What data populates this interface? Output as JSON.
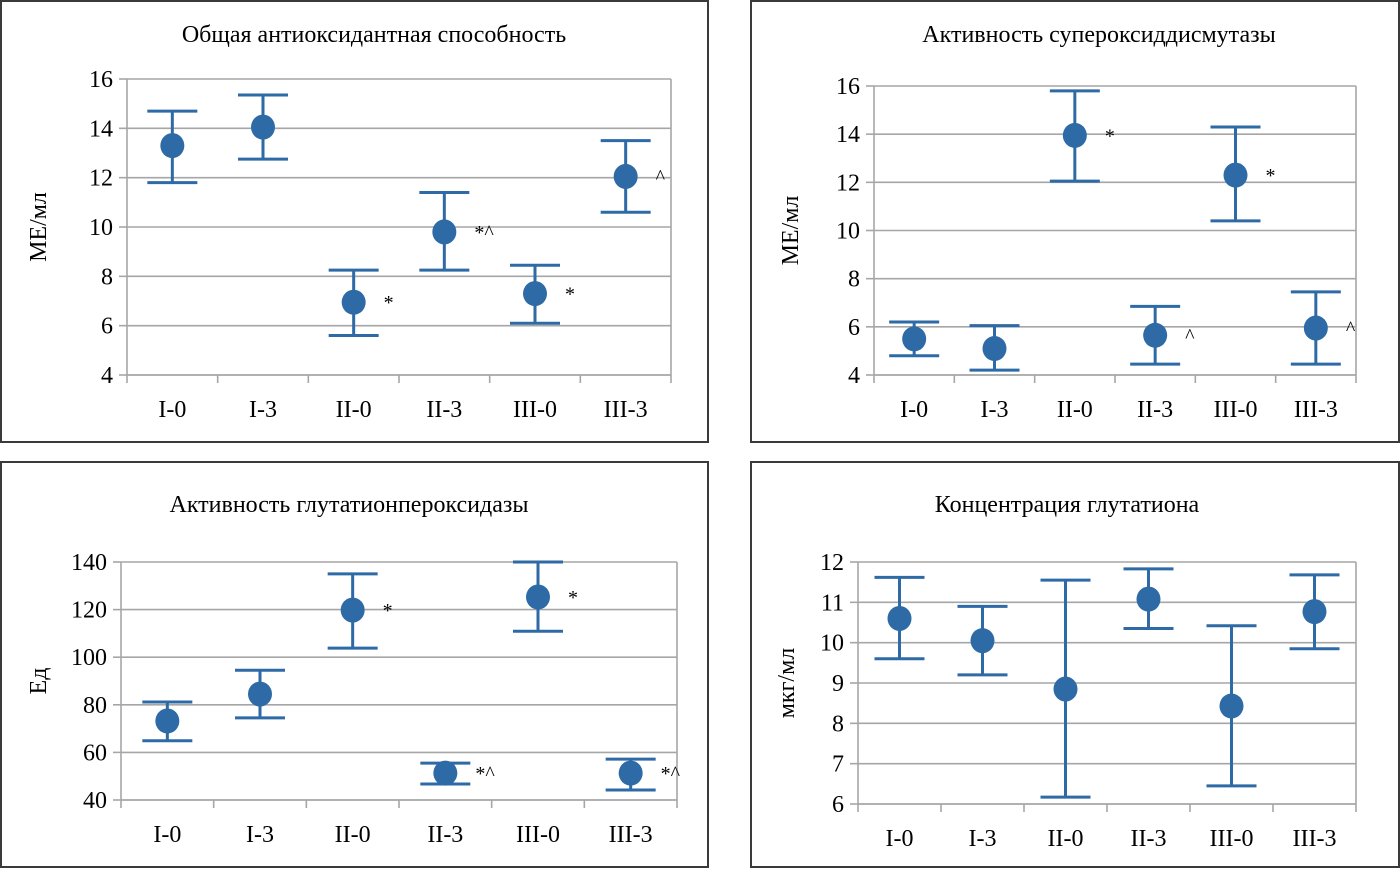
{
  "chart_data": [
    {
      "type": "scatter",
      "title": "Общая антиоксидантная  способность",
      "xlabel": "",
      "ylabel": "МЕ/мл",
      "ylim": [
        4,
        16
      ],
      "yticks": [
        4,
        6,
        8,
        10,
        12,
        14,
        16
      ],
      "ytick_labels": [
        "4",
        "6",
        "8",
        "10",
        "12",
        "14",
        "16"
      ],
      "grid": true,
      "categories": [
        "I-0",
        "I-3",
        "II-0",
        "II-3",
        "III-0",
        "III-3"
      ],
      "values": [
        13.3,
        14.05,
        6.95,
        9.8,
        7.3,
        12.05
      ],
      "error_upper": [
        14.7,
        15.35,
        8.25,
        11.4,
        8.45,
        13.5
      ],
      "error_lower": [
        11.8,
        12.75,
        5.6,
        8.25,
        6.1,
        10.6
      ],
      "annotations": [
        "",
        "",
        "*",
        "*^",
        "*",
        "^"
      ],
      "color": "#2e6aa6"
    },
    {
      "type": "scatter",
      "title": "Активность  супероксиддисмутазы",
      "xlabel": "",
      "ylabel": "МЕ/мл",
      "ylim": [
        4,
        16
      ],
      "yticks": [
        4,
        6,
        8,
        10,
        12,
        14,
        16
      ],
      "ytick_labels": [
        "4",
        "6",
        "8",
        "10",
        "12",
        "14",
        "16"
      ],
      "grid": true,
      "categories": [
        "I-0",
        "I-3",
        "II-0",
        "II-3",
        "III-0",
        "III-3"
      ],
      "values": [
        5.5,
        5.1,
        13.95,
        5.65,
        12.3,
        5.95
      ],
      "error_upper": [
        6.2,
        6.05,
        15.8,
        6.85,
        14.3,
        7.45
      ],
      "error_lower": [
        4.8,
        4.2,
        12.05,
        4.45,
        10.4,
        4.45
      ],
      "annotations": [
        "",
        "",
        "*",
        "^",
        "*",
        "^"
      ],
      "color": "#2e6aa6"
    },
    {
      "type": "scatter",
      "title": "Активность  глутатионпероксидазы",
      "xlabel": "",
      "ylabel": "Ед",
      "ylim": [
        40,
        140
      ],
      "yticks": [
        40,
        60,
        80,
        100,
        120,
        140
      ],
      "ytick_labels": [
        "40",
        "60",
        "80",
        "100",
        "120",
        "140"
      ],
      "grid": true,
      "categories": [
        "I-0",
        "I-3",
        "II-0",
        "II-3",
        "III-0",
        "III-3"
      ],
      "values": [
        73.2,
        84.5,
        119.8,
        51.3,
        125.3,
        51.3
      ],
      "error_upper": [
        81.2,
        94.5,
        135,
        55.5,
        140,
        57.2
      ],
      "error_lower": [
        64.9,
        74.5,
        103.8,
        46.7,
        110.9,
        44.2
      ],
      "annotations": [
        "",
        "",
        "*",
        "*^",
        "*",
        "*^"
      ],
      "color": "#2e6aa6"
    },
    {
      "type": "scatter",
      "title": "Концентрация  глутатиона",
      "xlabel": "",
      "ylabel": "мкг/мл",
      "ylim": [
        6,
        12
      ],
      "yticks": [
        6,
        7,
        8,
        9,
        10,
        11,
        12
      ],
      "ytick_labels": [
        "6",
        "7",
        "8",
        "9",
        "10",
        "11",
        "12"
      ],
      "grid": true,
      "categories": [
        "I-0",
        "I-3",
        "II-0",
        "II-3",
        "III-0",
        "III-3"
      ],
      "values": [
        10.6,
        10.05,
        8.85,
        11.08,
        8.43,
        10.77
      ],
      "error_upper": [
        11.62,
        10.9,
        11.55,
        11.83,
        10.42,
        11.68
      ],
      "error_lower": [
        9.6,
        9.2,
        6.17,
        10.35,
        6.45,
        9.85
      ],
      "annotations": [
        "",
        "",
        "",
        "",
        "",
        ""
      ],
      "color": "#2e6aa6"
    }
  ]
}
